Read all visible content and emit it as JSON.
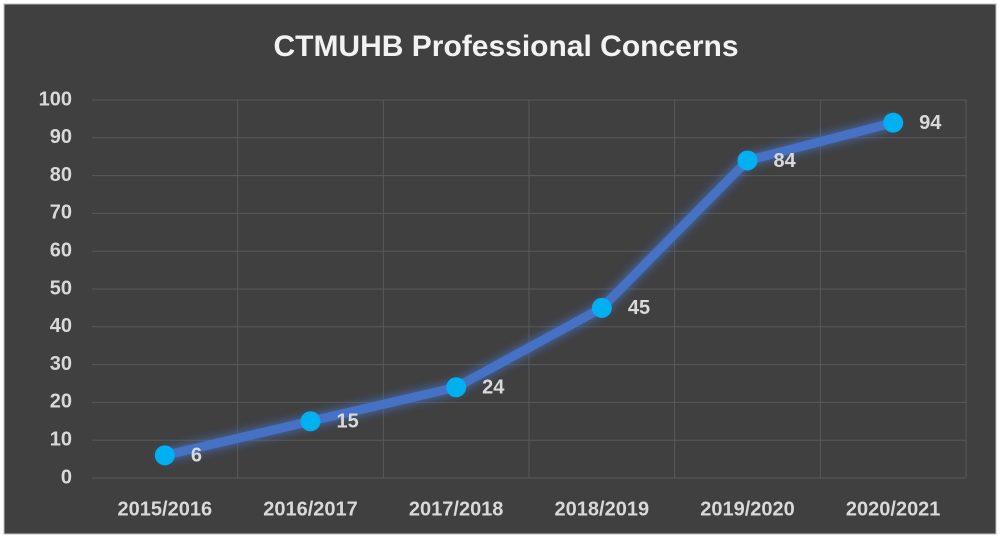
{
  "chart_data": {
    "type": "line",
    "title": "CTMUHB Professional Concerns",
    "categories": [
      "2015/2016",
      "2016/2017",
      "2017/2018",
      "2018/2019",
      "2019/2020",
      "2020/2021"
    ],
    "values": [
      6,
      15,
      24,
      45,
      84,
      94
    ],
    "color": "#4472c4",
    "marker_color": "#00b0f0",
    "ylim": [
      0,
      100
    ],
    "yticks": [
      0,
      10,
      20,
      30,
      40,
      50,
      60,
      70,
      80,
      90,
      100
    ],
    "grid": true
  }
}
